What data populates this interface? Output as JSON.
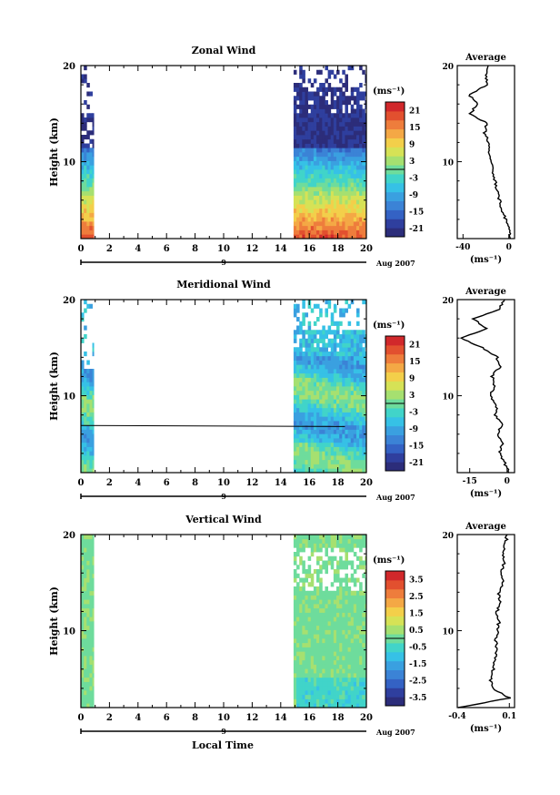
{
  "figure": {
    "x_axis_title": "Local Time",
    "date_label": "Aug 2007",
    "day_marker": "9",
    "unit_label": "(ms⁻¹)",
    "y_axis_title": "Height (km)",
    "colorbar_palette": [
      "#2c2d7a",
      "#2f3f9e",
      "#3462c4",
      "#3b83d6",
      "#3aa0e0",
      "#36c1e6",
      "#41d4c9",
      "#6edc9c",
      "#a6e070",
      "#d6e256",
      "#f3cf4a",
      "#f4a845",
      "#ee7d3c",
      "#e2502f",
      "#d1282b"
    ]
  },
  "chart_data": [
    {
      "type": "heatmap",
      "title": "Zonal Wind",
      "xlabel": "Local Time",
      "ylabel": "Height (km)",
      "xlim": [
        0,
        20
      ],
      "ylim": [
        2,
        20
      ],
      "xticks": [
        "0",
        "2",
        "4",
        "6",
        "8",
        "10",
        "12",
        "14",
        "16",
        "18",
        "20"
      ],
      "yticks": [
        "10",
        "20"
      ],
      "colorbar": {
        "unit": "(ms⁻¹)",
        "min": -24,
        "max": 24,
        "ticks": [
          "21",
          "15",
          "9",
          "3",
          "-3",
          "-9",
          "-15",
          "-21"
        ]
      },
      "data_coverage": [
        {
          "start": 0,
          "end": 0.9
        },
        {
          "start": 14.9,
          "end": 20
        }
      ],
      "profile": {
        "title": "Average",
        "xlabel": "(ms⁻¹)",
        "xlim": [
          -45,
          5
        ],
        "xticks": [
          "-40",
          "0"
        ],
        "yticks": [
          "10",
          "20"
        ],
        "height": [
          2,
          3,
          4,
          5,
          6,
          7,
          8,
          9,
          10,
          11,
          12,
          13,
          14,
          15,
          16,
          17,
          18,
          19,
          20
        ],
        "value": [
          2,
          0,
          -3,
          -6,
          -8,
          -10,
          -12,
          -14,
          -15,
          -17,
          -18,
          -21,
          -19,
          -34,
          -27,
          -35,
          -18,
          -20,
          -18
        ]
      }
    },
    {
      "type": "heatmap",
      "title": "Meridional Wind",
      "xlabel": "Local Time",
      "ylabel": "Height (km)",
      "xlim": [
        0,
        20
      ],
      "ylim": [
        2,
        20
      ],
      "xticks": [
        "0",
        "2",
        "4",
        "6",
        "8",
        "10",
        "12",
        "14",
        "16",
        "18",
        "20"
      ],
      "yticks": [
        "10",
        "20"
      ],
      "colorbar": {
        "unit": "(ms⁻¹)",
        "min": -24,
        "max": 24,
        "ticks": [
          "21",
          "15",
          "9",
          "3",
          "-3",
          "-9",
          "-15",
          "-21"
        ]
      },
      "data_coverage": [
        {
          "start": 0,
          "end": 0.9
        },
        {
          "start": 14.9,
          "end": 20
        }
      ],
      "profile": {
        "title": "Average",
        "xlabel": "(ms⁻¹)",
        "xlim": [
          -20,
          3
        ],
        "xticks": [
          "-15",
          "0"
        ],
        "yticks": [
          "10",
          "20"
        ],
        "height": [
          2,
          3,
          4,
          5,
          6,
          7,
          8,
          9,
          10,
          11,
          12,
          13,
          14,
          15,
          16,
          17,
          18,
          19,
          20
        ],
        "value": [
          1,
          -1,
          -3,
          -2,
          -4,
          -2,
          -5,
          -4,
          -7,
          -5,
          -6,
          -3,
          -4,
          -10,
          -18,
          -8,
          -14,
          -3,
          -1
        ]
      }
    },
    {
      "type": "heatmap",
      "title": "Vertical Wind",
      "xlabel": "Local Time",
      "ylabel": "Height (km)",
      "xlim": [
        0,
        20
      ],
      "ylim": [
        2,
        20
      ],
      "xticks": [
        "0",
        "2",
        "4",
        "6",
        "8",
        "10",
        "12",
        "14",
        "16",
        "18",
        "20"
      ],
      "yticks": [
        "10",
        "20"
      ],
      "colorbar": {
        "unit": "(ms⁻¹)",
        "min": -4,
        "max": 4,
        "ticks": [
          "3.5",
          "2.5",
          "1.5",
          "0.5",
          "-0.5",
          "-1.5",
          "-2.5",
          "-3.5"
        ]
      },
      "data_coverage": [
        {
          "start": 0,
          "end": 0.9
        },
        {
          "start": 14.9,
          "end": 20
        }
      ],
      "profile": {
        "title": "Average",
        "xlabel": "(ms⁻¹)",
        "xlim": [
          -0.4,
          0.15
        ],
        "xticks": [
          "-0.4",
          "0.1"
        ],
        "yticks": [
          "10",
          "20"
        ],
        "height": [
          2,
          3,
          4,
          5,
          6,
          7,
          8,
          9,
          10,
          11,
          12,
          13,
          14,
          15,
          16,
          17,
          18,
          19,
          20
        ],
        "value": [
          -0.38,
          0.1,
          -0.06,
          -0.08,
          -0.05,
          -0.04,
          -0.02,
          -0.03,
          -0.01,
          0.0,
          -0.02,
          0.01,
          0.0,
          0.04,
          0.02,
          0.05,
          0.03,
          0.06,
          0.08
        ]
      }
    }
  ]
}
